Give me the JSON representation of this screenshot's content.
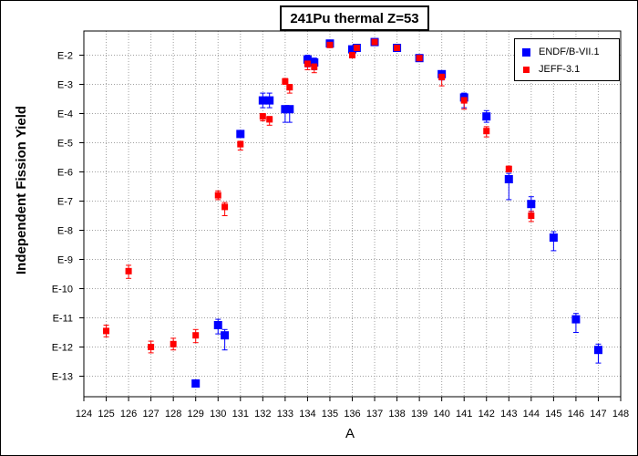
{
  "chart_data": {
    "type": "scatter",
    "title": "241Pu thermal Z=53",
    "xlabel": "A",
    "ylabel": "Independent Fission Yield",
    "xlim": [
      124,
      148
    ],
    "ylog": true,
    "ylim_exponent": [
      -13.8,
      -1.6
    ],
    "x_ticks": [
      "124",
      "125",
      "126",
      "127",
      "128",
      "129",
      "130",
      "131",
      "132",
      "133",
      "134",
      "135",
      "136",
      "137",
      "138",
      "139",
      "140",
      "141",
      "142",
      "143",
      "144",
      "145",
      "146",
      "147",
      "148"
    ],
    "y_ticks": [
      {
        "exp": -2,
        "label": "E-2"
      },
      {
        "exp": -3,
        "label": "E-3"
      },
      {
        "exp": -4,
        "label": "E-4"
      },
      {
        "exp": -5,
        "label": "E-5"
      },
      {
        "exp": -6,
        "label": "E-6"
      },
      {
        "exp": -7,
        "label": "E-7"
      },
      {
        "exp": -8,
        "label": "E-8"
      },
      {
        "exp": -9,
        "label": "E-9"
      },
      {
        "exp": -10,
        "label": "E-10"
      },
      {
        "exp": -11,
        "label": "E-11"
      },
      {
        "exp": -12,
        "label": "E-12"
      },
      {
        "exp": -13,
        "label": "E-13"
      }
    ],
    "grid": true,
    "legend_position": "top-right",
    "series": [
      {
        "name": "ENDF/B-VII.1",
        "color": "#0000ff",
        "marker_size": 9,
        "points": [
          {
            "x": 129.0,
            "y": -13.25,
            "err": [
              0.0,
              0.0
            ]
          },
          {
            "x": 130.0,
            "y": -11.25,
            "err": [
              0.3,
              0.2
            ]
          },
          {
            "x": 130.3,
            "y": -11.6,
            "err": [
              0.5,
              0.2
            ]
          },
          {
            "x": 131.0,
            "y": -4.7,
            "err": [
              0.0,
              0.0
            ]
          },
          {
            "x": 132.0,
            "y": -3.55,
            "err": [
              0.25,
              0.25
            ]
          },
          {
            "x": 132.3,
            "y": -3.55,
            "err": [
              0.25,
              0.25
            ]
          },
          {
            "x": 133.0,
            "y": -3.85,
            "err": [
              0.45,
              0.1
            ]
          },
          {
            "x": 133.2,
            "y": -3.85,
            "err": [
              0.45,
              0.1
            ]
          },
          {
            "x": 134.0,
            "y": -2.15,
            "err": [
              0.25,
              0.15
            ]
          },
          {
            "x": 134.3,
            "y": -2.25,
            "err": [
              0.25,
              0.15
            ]
          },
          {
            "x": 135.0,
            "y": -1.6,
            "err": [
              0.05,
              0.05
            ]
          },
          {
            "x": 136.0,
            "y": -1.8,
            "err": [
              0.05,
              0.05
            ]
          },
          {
            "x": 136.2,
            "y": -1.75,
            "err": [
              0.05,
              0.05
            ]
          },
          {
            "x": 137.0,
            "y": -1.55,
            "err": [
              0.03,
              0.03
            ]
          },
          {
            "x": 138.0,
            "y": -1.75,
            "err": [
              0.03,
              0.03
            ]
          },
          {
            "x": 139.0,
            "y": -2.1,
            "err": [
              0.05,
              0.05
            ]
          },
          {
            "x": 140.0,
            "y": -2.65,
            "err": [
              0.2,
              0.1
            ]
          },
          {
            "x": 141.0,
            "y": -3.45,
            "err": [
              0.35,
              0.15
            ]
          },
          {
            "x": 142.0,
            "y": -4.1,
            "err": [
              0.2,
              0.2
            ]
          },
          {
            "x": 143.0,
            "y": -6.25,
            "err": [
              0.7,
              0.2
            ]
          },
          {
            "x": 144.0,
            "y": -7.1,
            "err": [
              0.25,
              0.25
            ]
          },
          {
            "x": 145.0,
            "y": -8.25,
            "err": [
              0.45,
              0.2
            ]
          },
          {
            "x": 146.0,
            "y": -11.05,
            "err": [
              0.45,
              0.2
            ]
          },
          {
            "x": 147.0,
            "y": -12.1,
            "err": [
              0.45,
              0.2
            ]
          }
        ]
      },
      {
        "name": "JEFF-3.1",
        "color": "#ff0000",
        "marker_size": 7,
        "points": [
          {
            "x": 125.0,
            "y": -11.45,
            "err": [
              0.2,
              0.2
            ]
          },
          {
            "x": 126.0,
            "y": -9.4,
            "err": [
              0.25,
              0.2
            ]
          },
          {
            "x": 127.0,
            "y": -12.0,
            "err": [
              0.2,
              0.2
            ]
          },
          {
            "x": 128.0,
            "y": -11.9,
            "err": [
              0.2,
              0.2
            ]
          },
          {
            "x": 129.0,
            "y": -11.6,
            "err": [
              0.25,
              0.2
            ]
          },
          {
            "x": 130.0,
            "y": -6.8,
            "err": [
              0.15,
              0.15
            ]
          },
          {
            "x": 130.3,
            "y": -7.2,
            "err": [
              0.3,
              0.15
            ]
          },
          {
            "x": 131.0,
            "y": -5.05,
            "err": [
              0.2,
              0.1
            ]
          },
          {
            "x": 132.0,
            "y": -4.1,
            "err": [
              0.15,
              0.1
            ]
          },
          {
            "x": 132.3,
            "y": -4.2,
            "err": [
              0.2,
              0.1
            ]
          },
          {
            "x": 133.0,
            "y": -2.9,
            "err": [
              0.1,
              0.1
            ]
          },
          {
            "x": 133.2,
            "y": -3.1,
            "err": [
              0.2,
              0.1
            ]
          },
          {
            "x": 134.0,
            "y": -2.3,
            "err": [
              0.2,
              0.1
            ]
          },
          {
            "x": 134.3,
            "y": -2.4,
            "err": [
              0.2,
              0.1
            ]
          },
          {
            "x": 135.0,
            "y": -1.65,
            "err": [
              0.05,
              0.05
            ]
          },
          {
            "x": 136.0,
            "y": -2.0,
            "err": [
              0.05,
              0.05
            ]
          },
          {
            "x": 136.2,
            "y": -1.75,
            "err": [
              0.05,
              0.05
            ]
          },
          {
            "x": 137.0,
            "y": -1.55,
            "err": [
              0.03,
              0.03
            ]
          },
          {
            "x": 138.0,
            "y": -1.75,
            "err": [
              0.03,
              0.03
            ]
          },
          {
            "x": 139.0,
            "y": -2.1,
            "err": [
              0.05,
              0.05
            ]
          },
          {
            "x": 140.0,
            "y": -2.75,
            "err": [
              0.3,
              0.1
            ]
          },
          {
            "x": 141.0,
            "y": -3.55,
            "err": [
              0.3,
              0.1
            ]
          },
          {
            "x": 142.0,
            "y": -4.6,
            "err": [
              0.2,
              0.15
            ]
          },
          {
            "x": 143.0,
            "y": -5.9,
            "err": [
              0.1,
              0.1
            ]
          },
          {
            "x": 144.0,
            "y": -7.5,
            "err": [
              0.2,
              0.15
            ]
          }
        ]
      }
    ]
  }
}
